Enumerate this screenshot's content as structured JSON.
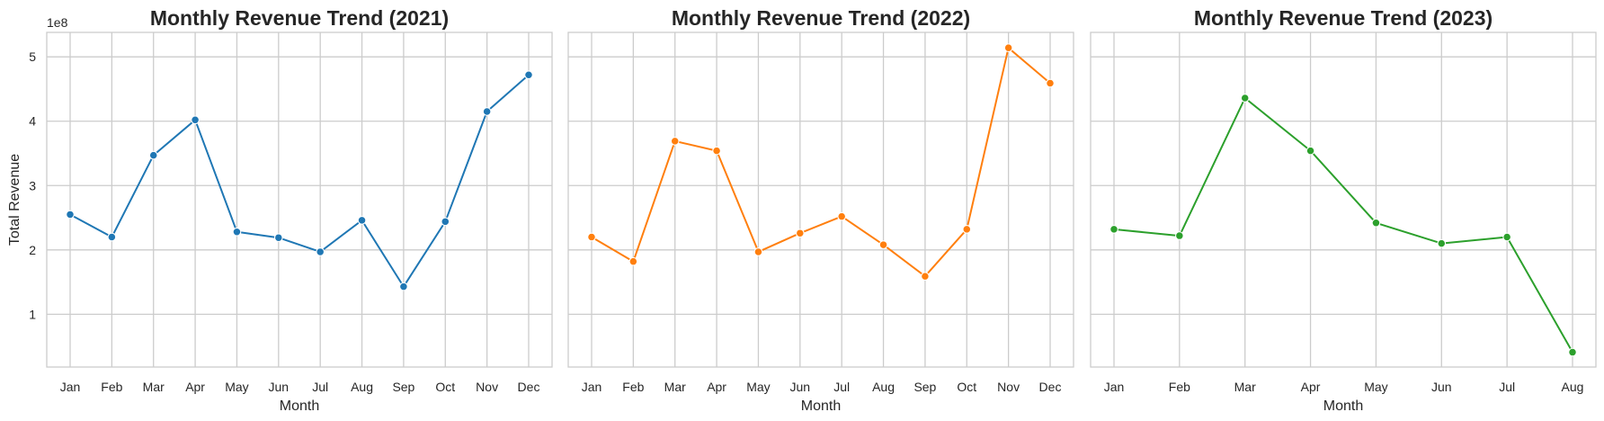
{
  "chart_data": [
    {
      "type": "line",
      "title": "Monthly Revenue Trend (2021)",
      "xlabel": "Month",
      "ylabel": "Total Revenue",
      "y_offset_label": "1e8",
      "y_scale": 100000000,
      "ylim": [
        0.18,
        5.38
      ],
      "yticks": [
        1,
        2,
        3,
        4,
        5
      ],
      "grid": true,
      "categories": [
        "Jan",
        "Feb",
        "Mar",
        "Apr",
        "May",
        "Jun",
        "Jul",
        "Aug",
        "Sep",
        "Oct",
        "Nov",
        "Dec"
      ],
      "color": "#1f77b4",
      "values": [
        2.55,
        2.2,
        3.47,
        4.02,
        2.28,
        2.19,
        1.97,
        2.46,
        1.43,
        2.44,
        4.15,
        4.72
      ]
    },
    {
      "type": "line",
      "title": "Monthly Revenue Trend (2022)",
      "xlabel": "Month",
      "ylabel": "",
      "y_offset_label": "",
      "y_scale": 100000000,
      "ylim": [
        0.18,
        5.38
      ],
      "yticks": [
        1,
        2,
        3,
        4,
        5
      ],
      "grid": true,
      "categories": [
        "Jan",
        "Feb",
        "Mar",
        "Apr",
        "May",
        "Jun",
        "Jul",
        "Aug",
        "Sep",
        "Oct",
        "Nov",
        "Dec"
      ],
      "color": "#ff7f0e",
      "values": [
        2.2,
        1.82,
        3.69,
        3.54,
        1.97,
        2.26,
        2.52,
        2.08,
        1.59,
        2.32,
        5.14,
        4.59
      ]
    },
    {
      "type": "line",
      "title": "Monthly Revenue Trend (2023)",
      "xlabel": "Month",
      "ylabel": "",
      "y_offset_label": "",
      "y_scale": 100000000,
      "ylim": [
        0.18,
        5.38
      ],
      "yticks": [
        1,
        2,
        3,
        4,
        5
      ],
      "grid": true,
      "categories": [
        "Jan",
        "Feb",
        "Mar",
        "Apr",
        "May",
        "Jun",
        "Jul",
        "Aug"
      ],
      "color": "#2ca02c",
      "values": [
        2.32,
        2.22,
        4.36,
        3.54,
        2.42,
        2.1,
        2.2,
        0.41
      ]
    }
  ]
}
